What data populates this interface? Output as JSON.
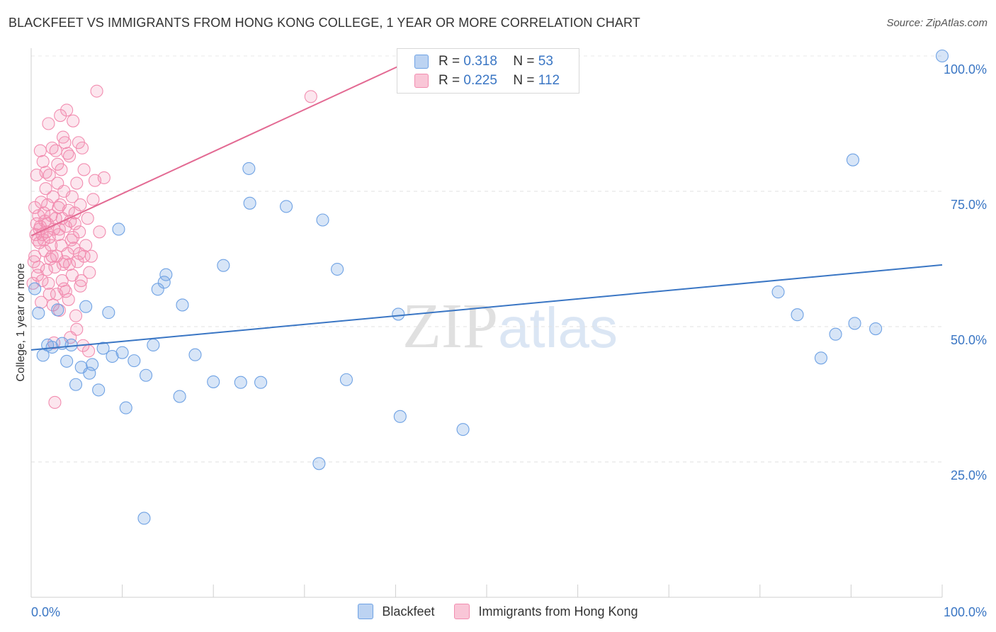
{
  "chart_data": {
    "type": "scatter",
    "title": "BLACKFEET VS IMMIGRANTS FROM HONG KONG COLLEGE, 1 YEAR OR MORE CORRELATION CHART",
    "source": "Source: ZipAtlas.com",
    "xlabel": "",
    "ylabel": "College, 1 year or more",
    "xlim": [
      0,
      100
    ],
    "ylim": [
      0,
      100
    ],
    "x_tick_labels": [
      "0.0%",
      "100.0%"
    ],
    "y_tick_labels": [
      {
        "value": 25,
        "label": "25.0%"
      },
      {
        "value": 50,
        "label": "50.0%"
      },
      {
        "value": 75,
        "label": "75.0%"
      },
      {
        "value": 100,
        "label": "100.0%"
      }
    ],
    "watermark": "ZIPatlas",
    "colors": {
      "blackfeet": "#6fa2e4",
      "blackfeet_line": "#3a76c4",
      "hongkong": "#f28db0",
      "hongkong_line": "#e36a93",
      "axis_text": "#3a76c4"
    },
    "legend_stats": [
      {
        "name": "Blackfeet",
        "r_label": "R =",
        "r": "0.318",
        "n_label": "N =",
        "n": "53"
      },
      {
        "name": "Immigrants from Hong Kong",
        "r_label": "R =",
        "r": "0.225",
        "n_label": "N =",
        "n": "112"
      }
    ],
    "series": [
      {
        "name": "Blackfeet",
        "trend": {
          "x0": 0,
          "y0": 45.7,
          "x1": 100,
          "y1": 61.4
        },
        "points": [
          [
            0.4,
            57.0
          ],
          [
            0.8,
            52.5
          ],
          [
            1.3,
            44.7
          ],
          [
            1.8,
            46.6
          ],
          [
            2.3,
            46.2
          ],
          [
            2.9,
            53.1
          ],
          [
            3.4,
            46.9
          ],
          [
            3.9,
            43.6
          ],
          [
            4.4,
            46.6
          ],
          [
            4.9,
            39.3
          ],
          [
            5.5,
            42.5
          ],
          [
            6.0,
            53.7
          ],
          [
            6.4,
            41.4
          ],
          [
            6.7,
            43.0
          ],
          [
            7.4,
            38.3
          ],
          [
            7.9,
            46.0
          ],
          [
            8.5,
            52.6
          ],
          [
            8.9,
            44.5
          ],
          [
            9.6,
            68.0
          ],
          [
            10.0,
            45.2
          ],
          [
            10.4,
            35.0
          ],
          [
            11.3,
            43.7
          ],
          [
            12.4,
            14.6
          ],
          [
            12.6,
            41.0
          ],
          [
            13.4,
            46.6
          ],
          [
            13.9,
            56.9
          ],
          [
            14.6,
            58.2
          ],
          [
            14.8,
            59.6
          ],
          [
            16.3,
            37.1
          ],
          [
            16.6,
            54.0
          ],
          [
            18.0,
            44.8
          ],
          [
            20.0,
            39.8
          ],
          [
            21.1,
            61.3
          ],
          [
            23.0,
            39.7
          ],
          [
            23.9,
            79.2
          ],
          [
            24.0,
            72.8
          ],
          [
            25.2,
            39.7
          ],
          [
            28.0,
            72.2
          ],
          [
            31.6,
            24.7
          ],
          [
            32.0,
            69.7
          ],
          [
            33.6,
            60.6
          ],
          [
            34.6,
            40.2
          ],
          [
            40.3,
            52.3
          ],
          [
            40.5,
            33.4
          ],
          [
            47.4,
            31.0
          ],
          [
            82.0,
            56.4
          ],
          [
            84.1,
            52.2
          ],
          [
            86.7,
            44.2
          ],
          [
            88.3,
            48.6
          ],
          [
            90.2,
            80.8
          ],
          [
            90.4,
            50.6
          ],
          [
            92.7,
            49.6
          ],
          [
            100.0,
            100.0
          ]
        ]
      },
      {
        "name": "Immigrants from Hong Kong",
        "trend": {
          "x0": 0,
          "y0": 66.8,
          "x1": 40.7,
          "y1": 98.4
        },
        "points": [
          [
            0.2,
            58.0
          ],
          [
            0.3,
            62.0
          ],
          [
            0.4,
            72.0
          ],
          [
            0.5,
            67.0
          ],
          [
            0.6,
            69.0
          ],
          [
            0.6,
            78.0
          ],
          [
            0.7,
            66.0
          ],
          [
            0.8,
            61.0
          ],
          [
            0.8,
            70.5
          ],
          [
            0.9,
            65.5
          ],
          [
            1.0,
            82.5
          ],
          [
            1.0,
            68.5
          ],
          [
            1.1,
            73.0
          ],
          [
            1.2,
            67.0
          ],
          [
            1.2,
            58.5
          ],
          [
            1.3,
            80.5
          ],
          [
            1.4,
            71.0
          ],
          [
            1.5,
            64.0
          ],
          [
            1.5,
            69.5
          ],
          [
            1.6,
            75.5
          ],
          [
            1.7,
            60.5
          ],
          [
            1.7,
            67.5
          ],
          [
            1.8,
            72.5
          ],
          [
            1.9,
            87.5
          ],
          [
            2.0,
            78.0
          ],
          [
            2.0,
            66.5
          ],
          [
            2.1,
            62.5
          ],
          [
            2.2,
            70.5
          ],
          [
            2.3,
            83.0
          ],
          [
            2.4,
            54.0
          ],
          [
            2.4,
            74.0
          ],
          [
            2.5,
            68.0
          ],
          [
            2.5,
            47.0
          ],
          [
            2.6,
            36.0
          ],
          [
            2.7,
            82.5
          ],
          [
            2.8,
            63.0
          ],
          [
            2.8,
            56.0
          ],
          [
            2.9,
            76.5
          ],
          [
            3.0,
            67.0
          ],
          [
            3.0,
            72.0
          ],
          [
            3.1,
            53.0
          ],
          [
            3.2,
            89.0
          ],
          [
            3.3,
            65.0
          ],
          [
            3.3,
            79.0
          ],
          [
            3.4,
            70.0
          ],
          [
            3.5,
            61.5
          ],
          [
            3.6,
            57.0
          ],
          [
            3.6,
            75.0
          ],
          [
            3.7,
            84.0
          ],
          [
            3.8,
            68.5
          ],
          [
            3.9,
            90.0
          ],
          [
            4.0,
            63.5
          ],
          [
            4.1,
            55.0
          ],
          [
            4.1,
            71.5
          ],
          [
            4.2,
            81.5
          ],
          [
            4.3,
            48.0
          ],
          [
            4.4,
            66.0
          ],
          [
            4.5,
            74.0
          ],
          [
            4.5,
            59.5
          ],
          [
            4.6,
            88.0
          ],
          [
            4.7,
            64.5
          ],
          [
            4.8,
            69.0
          ],
          [
            4.9,
            52.0
          ],
          [
            5.0,
            76.5
          ],
          [
            5.1,
            62.0
          ],
          [
            5.2,
            84.0
          ],
          [
            5.3,
            67.5
          ],
          [
            5.4,
            72.5
          ],
          [
            5.5,
            58.5
          ],
          [
            5.6,
            83.0
          ],
          [
            5.7,
            46.5
          ],
          [
            5.8,
            79.0
          ],
          [
            6.0,
            65.0
          ],
          [
            6.2,
            70.0
          ],
          [
            6.4,
            60.0
          ],
          [
            6.6,
            63.0
          ],
          [
            7.0,
            77.0
          ],
          [
            7.2,
            93.5
          ],
          [
            7.5,
            67.5
          ],
          [
            8.0,
            77.5
          ],
          [
            1.1,
            54.5
          ],
          [
            1.9,
            58.0
          ],
          [
            2.2,
            65.0
          ],
          [
            2.6,
            61.0
          ],
          [
            3.1,
            68.0
          ],
          [
            3.4,
            58.5
          ],
          [
            3.8,
            56.5
          ],
          [
            4.2,
            61.5
          ],
          [
            4.6,
            66.5
          ],
          [
            5.0,
            49.5
          ],
          [
            5.3,
            63.5
          ],
          [
            5.8,
            63.0
          ],
          [
            6.3,
            45.5
          ],
          [
            0.4,
            63.0
          ],
          [
            0.9,
            68.0
          ],
          [
            1.4,
            66.0
          ],
          [
            1.8,
            69.0
          ],
          [
            2.3,
            63.0
          ],
          [
            2.7,
            70.0
          ],
          [
            3.2,
            72.5
          ],
          [
            3.7,
            62.0
          ],
          [
            4.3,
            69.5
          ],
          [
            4.8,
            71.0
          ],
          [
            5.4,
            57.5
          ],
          [
            1.6,
            78.5
          ],
          [
            2.9,
            80.0
          ],
          [
            3.5,
            85.0
          ],
          [
            4.0,
            82.0
          ],
          [
            2.0,
            56.0
          ],
          [
            6.8,
            73.5
          ],
          [
            0.7,
            59.5
          ],
          [
            30.7,
            92.5
          ]
        ]
      }
    ]
  }
}
